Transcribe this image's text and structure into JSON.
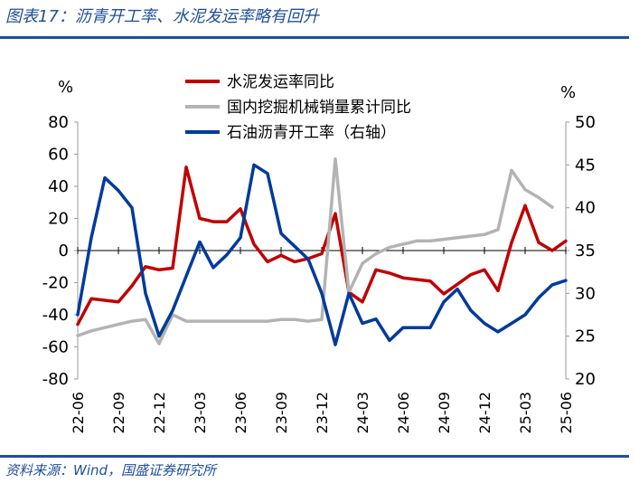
{
  "title": "图表17：沥青开工率、水泥发运率略有回升",
  "source": "资料来源：Wind，国盛证券研究所",
  "chart_data": {
    "type": "line",
    "left_unit": "%",
    "right_unit": "%",
    "left_ylim": [
      -80,
      80
    ],
    "left_ticks": [
      "80",
      "60",
      "40",
      "20",
      "0",
      "-20",
      "-40",
      "-60",
      "-80"
    ],
    "right_ylim": [
      20,
      50
    ],
    "right_ticks": [
      "50",
      "45",
      "40",
      "35",
      "30",
      "25",
      "20"
    ],
    "xlim": [
      0,
      36
    ],
    "categories": [
      "22-06",
      "22-09",
      "22-12",
      "23-03",
      "23-06",
      "23-09",
      "23-12",
      "24-03",
      "24-06",
      "24-09",
      "24-12",
      "25-03",
      "25-06"
    ],
    "legend_position": "top-center",
    "grid": false,
    "series": [
      {
        "name": "水泥发运率同比",
        "color": "#c00000",
        "axis": "left",
        "x": [
          0,
          1,
          2,
          3,
          4,
          5,
          6,
          7,
          8,
          9,
          10,
          11,
          12,
          13,
          14,
          15,
          16,
          17,
          18,
          19,
          20,
          21,
          22,
          23,
          24,
          25,
          26,
          27,
          28,
          29,
          30,
          31,
          32,
          33,
          34,
          35,
          36
        ],
        "y": [
          -46,
          -30,
          -31,
          -32,
          -22,
          -10,
          -12,
          -11,
          52,
          20,
          18,
          18,
          26,
          4,
          -7,
          -3,
          -7,
          -5,
          -2,
          23,
          -26,
          -32,
          -12,
          -14,
          -17,
          -18,
          -19,
          -27,
          -21,
          -15,
          -12,
          -25,
          5,
          28,
          5,
          0,
          6
        ]
      },
      {
        "name": "国内挖掘机械销量累计同比",
        "color": "#b3b3b3",
        "axis": "left",
        "x": [
          0,
          1,
          2,
          3,
          4,
          5,
          6,
          7,
          8,
          9,
          10,
          11,
          12,
          13,
          14,
          15,
          16,
          17,
          18,
          19,
          20,
          21,
          22,
          23,
          24,
          25,
          26,
          27,
          28,
          29,
          30,
          31,
          32,
          33,
          34,
          35
        ],
        "y": [
          -53,
          -50,
          -48,
          -46,
          -44,
          -43,
          -58,
          -40,
          -44,
          -44,
          -44,
          -44,
          -44,
          -44,
          -44,
          -43,
          -43,
          -44,
          -43,
          57,
          -26,
          -8,
          -2,
          2,
          4,
          6,
          6,
          7,
          8,
          9,
          10,
          13,
          50,
          38,
          33,
          27
        ]
      },
      {
        "name": "石油沥青开工率（右轴）",
        "color": "#003a9c",
        "axis": "right",
        "x": [
          0,
          1,
          2,
          3,
          4,
          5,
          6,
          7,
          8,
          9,
          10,
          11,
          12,
          13,
          14,
          15,
          16,
          17,
          18,
          19,
          20,
          21,
          22,
          23,
          24,
          25,
          26,
          27,
          28,
          29,
          30,
          31,
          32,
          33,
          34,
          35,
          36
        ],
        "y": [
          27.5,
          36.5,
          43.5,
          42,
          40,
          30,
          25,
          28,
          32,
          36,
          33,
          34.5,
          36.5,
          45,
          44,
          37,
          35.5,
          34,
          30,
          24,
          30,
          26.5,
          27,
          24.5,
          26,
          26,
          26,
          29,
          30.5,
          28,
          26.5,
          25.5,
          26.5,
          27.5,
          29.5,
          31,
          31.5
        ]
      }
    ]
  }
}
